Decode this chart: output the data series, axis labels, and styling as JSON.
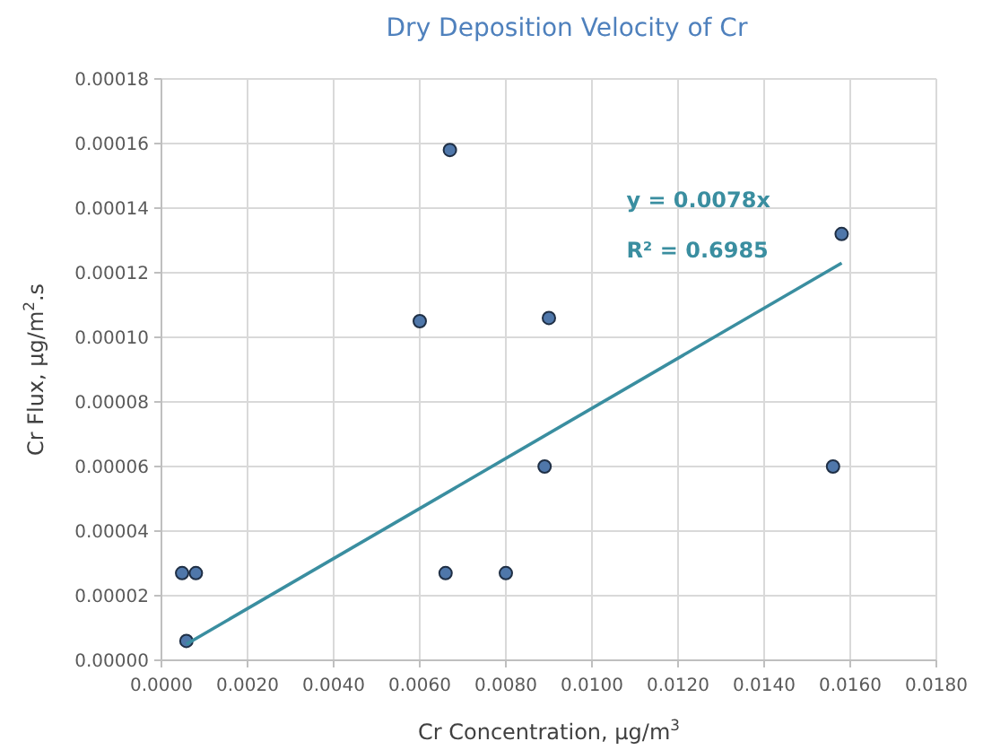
{
  "chart_data": {
    "type": "scatter",
    "title": "Dry Deposition Velocity of Cr",
    "xlabel": "Cr Concentration, µg/m$^{3}$",
    "ylabel": "Cr Flux, µg/m$^{2}$.s",
    "series": [
      {
        "color": "#4f77aa",
        "marker": "circle",
        "x": [
          0.00048,
          0.0008,
          0.00058,
          0.0066,
          0.008,
          0.0089,
          0.0156,
          0.006,
          0.0067,
          0.009,
          0.0158
        ],
        "values": [
          2.7e-05,
          2.7e-05,
          6e-06,
          2.7e-05,
          2.7e-05,
          6e-05,
          6e-05,
          0.000105,
          0.000158,
          0.000106,
          0.000132
        ]
      },
      {
        "type": "line",
        "color": "#3a8ea0",
        "x": [
          0.00058,
          0.0158
        ],
        "values": [
          5e-06,
          0.000123
        ]
      }
    ],
    "annotations": [
      "y = 0.0078x",
      "R² = 0.6985"
    ],
    "xlim": [
      0,
      0.018
    ],
    "xticks": [
      {
        "value": 0,
        "label": "0.0000"
      },
      {
        "value": 0.002,
        "label": "0.0020"
      },
      {
        "value": 0.004,
        "label": "0.0040"
      },
      {
        "value": 0.006,
        "label": "0.0060"
      },
      {
        "value": 0.008,
        "label": "0.0080"
      },
      {
        "value": 0.01,
        "label": "0.0100"
      },
      {
        "value": 0.012,
        "label": "0.0120"
      },
      {
        "value": 0.014,
        "label": "0.0140"
      },
      {
        "value": 0.016,
        "label": "0.0160"
      },
      {
        "value": 0.018,
        "label": "0.0180"
      }
    ],
    "ylim": [
      0,
      0.00018
    ],
    "yticks": [
      {
        "value": 0,
        "label": "0.00000"
      },
      {
        "value": 2e-05,
        "label": "0.00002"
      },
      {
        "value": 4e-05,
        "label": "0.00004"
      },
      {
        "value": 6e-05,
        "label": "0.00006"
      },
      {
        "value": 8e-05,
        "label": "0.00008"
      },
      {
        "value": 0.0001,
        "label": "0.00010"
      },
      {
        "value": 0.00012,
        "label": "0.00012"
      },
      {
        "value": 0.00014,
        "label": "0.00014"
      },
      {
        "value": 0.00016,
        "label": "0.00016"
      },
      {
        "value": 0.00018,
        "label": "0.00018"
      }
    ],
    "grid": true
  }
}
